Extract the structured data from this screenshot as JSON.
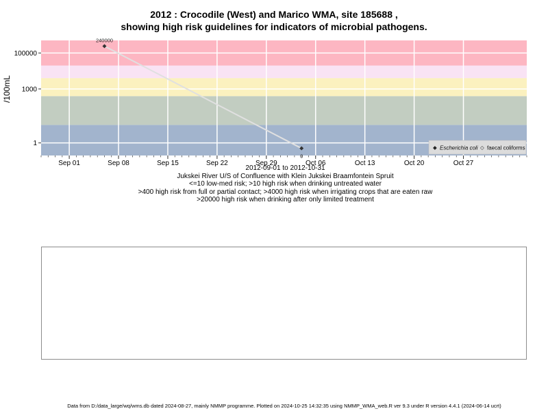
{
  "title_lines": [
    "2012 : Crocodile (West) and Marico WMA, site 185688 ,",
    "showing high risk guidelines for indicators of microbial pathogens."
  ],
  "caption_lines": [
    "2012-09-01 to 2012-10-31",
    "Jukskei River U/S of Confluence with Klein Jukskei Braamfontein Spruit",
    "<=10 low-med risk; >10 high risk when drinking untreated water",
    ">400 high risk from full or partial contact; >4000 high risk when irrigating crops that are eaten raw",
    ">20000 high risk when drinking after only limited treatment"
  ],
  "footer": "Data from D:/data_large/wq/wms.db dated 2024-08-27, mainly NMMP programme. Plotted on 2024-10-25 14:32:35 using NMMP_WMA_web.R ver 9.3 under R version 4.4.1 (2024-06-14 ucrt)",
  "chart_data": {
    "type": "line",
    "ylabel": "/100mL",
    "y_scale": "log",
    "x_range": [
      "2012-08-28",
      "2012-11-05"
    ],
    "y_range": [
      0.2,
      500000
    ],
    "x_ticks": [
      {
        "date": "2012-09-01",
        "label": "Sep 01"
      },
      {
        "date": "2012-09-08",
        "label": "Sep 08"
      },
      {
        "date": "2012-09-15",
        "label": "Sep 15"
      },
      {
        "date": "2012-09-22",
        "label": "Sep 22"
      },
      {
        "date": "2012-09-29",
        "label": "Sep 29"
      },
      {
        "date": "2012-10-06",
        "label": "Oct 06"
      },
      {
        "date": "2012-10-13",
        "label": "Oct 13"
      },
      {
        "date": "2012-10-20",
        "label": "Oct 20"
      },
      {
        "date": "2012-10-27",
        "label": "Oct 27"
      }
    ],
    "y_ticks": [
      {
        "value": 1,
        "label": "1"
      },
      {
        "value": 1000,
        "label": "1000"
      },
      {
        "value": 100000,
        "label": "100000"
      }
    ],
    "risk_bands": [
      {
        "from": 0.2,
        "to": 10,
        "color": "#a2b4cd"
      },
      {
        "from": 10,
        "to": 400,
        "color": "#c2cdc1"
      },
      {
        "from": 400,
        "to": 4000,
        "color": "#fbf1bf"
      },
      {
        "from": 4000,
        "to": 20000,
        "color": "#f9e3f4"
      },
      {
        "from": 20000,
        "to": 500000,
        "color": "#fdb6c2"
      }
    ],
    "series": [
      {
        "name": "Escherichia coli",
        "marker": "◆",
        "color": "#333333",
        "points": [
          {
            "x": "2012-09-06",
            "y": 240000,
            "label": "240000"
          },
          {
            "x": "2012-10-04",
            "y": 0.5,
            "label": "0"
          }
        ]
      }
    ],
    "legend": {
      "position": "bottom-right",
      "entries": [
        {
          "marker": "◆",
          "label": "Escherichia coli"
        },
        {
          "marker": "◇",
          "label": "faecal coliforms"
        }
      ]
    },
    "grid": true
  }
}
